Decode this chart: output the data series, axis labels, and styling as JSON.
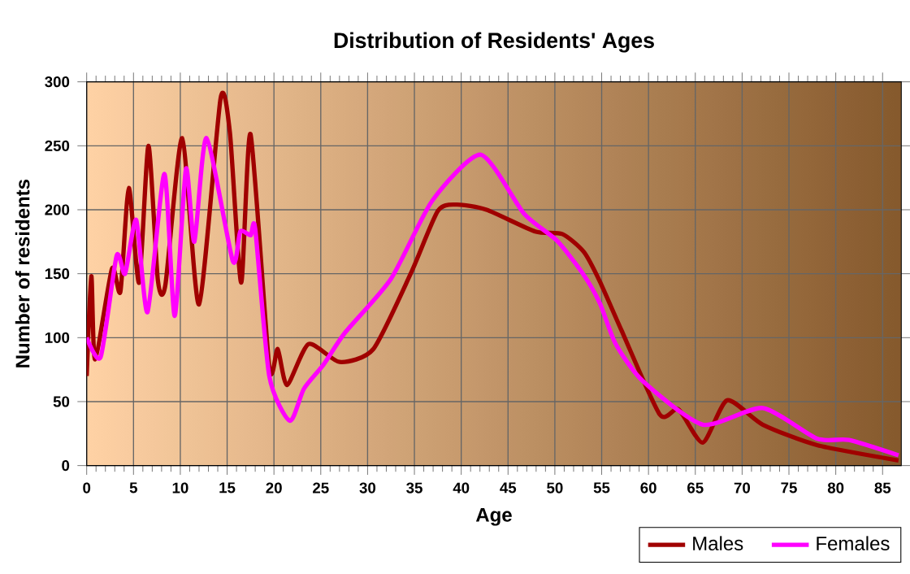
{
  "chart_data": {
    "type": "line",
    "title": "Distribution of Residents' Ages",
    "xlabel": "Age",
    "ylabel": "Number of residents",
    "xlim": [
      0,
      87
    ],
    "xticks": [
      0,
      5,
      10,
      15,
      20,
      25,
      30,
      35,
      40,
      45,
      50,
      55,
      60,
      65,
      70,
      75,
      80,
      85
    ],
    "ylim": [
      0,
      300
    ],
    "yticks": [
      0,
      50,
      100,
      150,
      200,
      250,
      300
    ],
    "grid": true,
    "legend": "bottom right",
    "series": [
      {
        "name": "Males",
        "color": "#a00000",
        "x": [
          0,
          0.5,
          0.9,
          2.7,
          3.6,
          4.5,
          5.6,
          6.6,
          7.6,
          8.4,
          10.2,
          12,
          14.3,
          15.3,
          16.5,
          17.5,
          19.5,
          20.4,
          21.4,
          23.7,
          27,
          30.6,
          34.6,
          37.5,
          39.5,
          42.7,
          47.9,
          50.8,
          53.1,
          54.8,
          57.1,
          61.2,
          63.2,
          65.8,
          68.4,
          72.2,
          78,
          86.7
        ],
        "values": [
          70,
          148,
          83,
          154,
          136,
          217,
          143,
          250,
          145,
          141,
          256,
          126,
          287,
          260,
          143,
          259,
          77,
          91,
          63,
          95,
          81,
          91,
          150,
          199,
          204,
          200,
          183,
          181,
          167,
          144,
          106,
          40,
          44,
          18,
          51,
          32,
          16,
          4
        ]
      },
      {
        "name": "Females",
        "color": "#ff00ff",
        "x": [
          0,
          1.5,
          3.2,
          4.1,
          5.3,
          6.5,
          8.3,
          9.4,
          10.6,
          11.5,
          12.8,
          15.6,
          16.4,
          17.5,
          18,
          19.5,
          21.7,
          23.2,
          25.3,
          27.6,
          32.5,
          36.9,
          42.1,
          46.7,
          50.2,
          53,
          54.8,
          56.5,
          59.4,
          65.8,
          72.2,
          78,
          81.4,
          86.7
        ],
        "values": [
          100,
          85,
          164,
          150,
          192,
          120,
          228,
          117,
          232,
          175,
          256,
          160,
          183,
          180,
          185,
          70,
          35,
          60,
          79,
          104,
          146,
          207,
          243,
          197,
          176,
          150,
          127,
          95,
          66,
          32,
          45,
          21,
          20,
          8
        ]
      }
    ]
  }
}
